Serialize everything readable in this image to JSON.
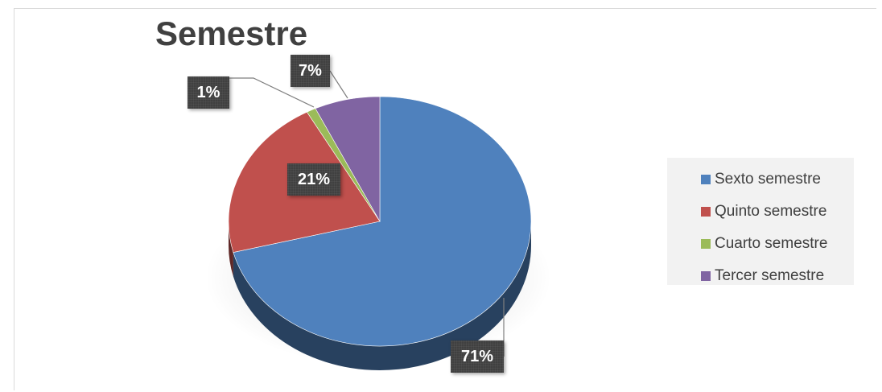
{
  "chart_data": {
    "type": "pie",
    "title": "Semestre",
    "categories": [
      "Sexto semestre",
      "Quinto semestre",
      "Cuarto semestre",
      "Tercer semestre"
    ],
    "values": [
      71,
      21,
      1,
      7
    ],
    "labels": [
      "71%",
      "21%",
      "1%",
      "7%"
    ],
    "colors": [
      "#4f81bd",
      "#c0504d",
      "#9bbb59",
      "#8064a2"
    ],
    "style": "3d",
    "legend_position": "right"
  }
}
